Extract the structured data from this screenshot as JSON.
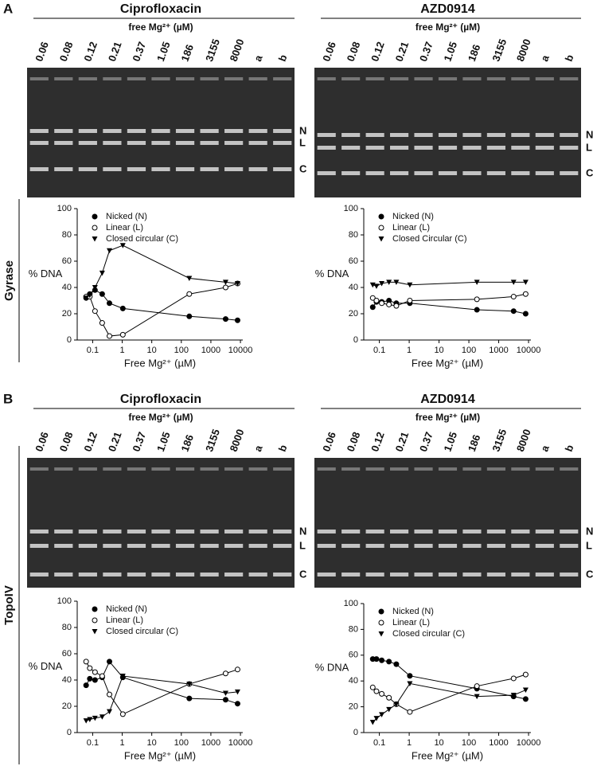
{
  "panels": [
    {
      "label": "A",
      "side_label": "Gyrase",
      "gels": [
        {
          "title": "Ciprofloxacin",
          "subtitle": "free Mg²⁺ (µM)",
          "lanes": [
            "0.06",
            "0.08",
            "0.12",
            "0.21",
            "0.37",
            "1.05",
            "186",
            "3155",
            "8000",
            "a",
            "b"
          ],
          "bands": [
            "N",
            "L",
            "C"
          ]
        },
        {
          "title": "AZD0914",
          "subtitle": "free Mg²⁺ (µM)",
          "lanes": [
            "0.06",
            "0.08",
            "0.12",
            "0.21",
            "0.37",
            "1.05",
            "186",
            "3155",
            "8000",
            "a",
            "b"
          ],
          "bands": [
            "N",
            "L",
            "C"
          ]
        }
      ]
    },
    {
      "label": "B",
      "side_label": "TopoIV",
      "gels": [
        {
          "title": "Ciprofloxacin",
          "subtitle": "free Mg²⁺ (µM)",
          "lanes": [
            "0.06",
            "0.08",
            "0.12",
            "0.21",
            "0.37",
            "1.05",
            "186",
            "3155",
            "8000",
            "a",
            "b"
          ],
          "bands": [
            "N",
            "L",
            "C"
          ]
        },
        {
          "title": "AZD0914",
          "subtitle": "free Mg²⁺ (µM)",
          "lanes": [
            "0.06",
            "0.08",
            "0.12",
            "0.21",
            "0.37",
            "1.05",
            "186",
            "3155",
            "8000",
            "a",
            "b"
          ],
          "bands": [
            "N",
            "L",
            "C"
          ]
        }
      ]
    }
  ],
  "chart_data": [
    {
      "type": "line",
      "x_label": "Free Mg²⁺ (µM)",
      "y_label": "% DNA",
      "x": [
        0.06,
        0.08,
        0.12,
        0.21,
        0.37,
        1.05,
        186,
        3155,
        8000
      ],
      "xlim": [
        0.03,
        12000
      ],
      "xticks": [
        0.1,
        1,
        10,
        100,
        1000,
        10000
      ],
      "x_scale": "log",
      "ylim": [
        0,
        100
      ],
      "yticks": [
        0,
        20,
        40,
        60,
        80,
        100
      ],
      "legend": "top-left",
      "series": [
        {
          "name": "Nicked (N)",
          "color": "#000000",
          "marker": "circle-filled",
          "values": [
            32,
            35,
            38,
            35,
            28,
            24,
            18,
            16,
            15
          ]
        },
        {
          "name": "Linear (L)",
          "color": "#000000",
          "marker": "circle-open",
          "values": [
            33,
            33,
            22,
            13,
            3,
            4,
            35,
            40,
            43
          ]
        },
        {
          "name": "Closed circular (C)",
          "color": "#000000",
          "marker": "triangle-down",
          "values": [
            32,
            34,
            40,
            51,
            68,
            72,
            47,
            44,
            43
          ]
        }
      ]
    },
    {
      "type": "line",
      "x_label": "Free Mg²⁺ (µM)",
      "y_label": "% DNA",
      "x": [
        0.06,
        0.08,
        0.12,
        0.21,
        0.37,
        1.05,
        186,
        3155,
        8000
      ],
      "xlim": [
        0.03,
        12000
      ],
      "xticks": [
        0.1,
        1,
        10,
        100,
        1000,
        10000
      ],
      "x_scale": "log",
      "ylim": [
        0,
        100
      ],
      "yticks": [
        0,
        20,
        40,
        60,
        80,
        100
      ],
      "legend": "top-left",
      "series": [
        {
          "name": "Nicked (N)",
          "color": "#000000",
          "marker": "circle-filled",
          "values": [
            25,
            29,
            29,
            30,
            28,
            28,
            23,
            22,
            20
          ]
        },
        {
          "name": "Linear (L)",
          "color": "#000000",
          "marker": "circle-open",
          "values": [
            32,
            30,
            28,
            27,
            26,
            30,
            31,
            33,
            35
          ]
        },
        {
          "name": "Closed Circular (C)",
          "color": "#000000",
          "marker": "triangle-down",
          "values": [
            42,
            41,
            43,
            44,
            44,
            42,
            44,
            44,
            44
          ]
        }
      ]
    },
    {
      "type": "line",
      "x_label": "Free Mg²⁺ (µM)",
      "y_label": "% DNA",
      "x": [
        0.06,
        0.08,
        0.12,
        0.21,
        0.37,
        1.05,
        186,
        3155,
        8000
      ],
      "xlim": [
        0.03,
        12000
      ],
      "xticks": [
        0.1,
        1,
        10,
        100,
        1000,
        10000
      ],
      "x_scale": "log",
      "ylim": [
        0,
        100
      ],
      "yticks": [
        0,
        20,
        40,
        60,
        80,
        100
      ],
      "legend": "top-left",
      "series": [
        {
          "name": "Nicked (N)",
          "color": "#000000",
          "marker": "circle-filled",
          "values": [
            36,
            41,
            40,
            42,
            54,
            42,
            26,
            25,
            22
          ]
        },
        {
          "name": "Linear (L)",
          "color": "#000000",
          "marker": "circle-open",
          "values": [
            54,
            49,
            46,
            43,
            29,
            14,
            37,
            45,
            48
          ]
        },
        {
          "name": "Closed circular (C)",
          "color": "#000000",
          "marker": "triangle-down",
          "values": [
            9,
            10,
            11,
            12,
            16,
            43,
            37,
            30,
            31
          ]
        }
      ]
    },
    {
      "type": "line",
      "x_label": "Free Mg²⁺ (µM)",
      "y_label": "% DNA",
      "x": [
        0.06,
        0.08,
        0.12,
        0.21,
        0.37,
        1.05,
        186,
        3155,
        8000
      ],
      "xlim": [
        0.03,
        12000
      ],
      "xticks": [
        0.1,
        1,
        10,
        100,
        1000,
        10000
      ],
      "x_scale": "log",
      "ylim": [
        0,
        100
      ],
      "yticks": [
        0,
        20,
        40,
        60,
        80,
        100
      ],
      "legend": "top-left",
      "series": [
        {
          "name": "Nicked (N)",
          "color": "#000000",
          "marker": "circle-filled",
          "values": [
            57,
            57,
            56,
            55,
            53,
            44,
            34,
            28,
            26
          ]
        },
        {
          "name": "Linear (L)",
          "color": "#000000",
          "marker": "circle-open",
          "values": [
            35,
            32,
            30,
            27,
            22,
            16,
            36,
            42,
            45
          ]
        },
        {
          "name": "Closed circular (C)",
          "color": "#000000",
          "marker": "triangle-down",
          "values": [
            8,
            11,
            14,
            18,
            22,
            38,
            28,
            29,
            33
          ]
        }
      ]
    }
  ]
}
